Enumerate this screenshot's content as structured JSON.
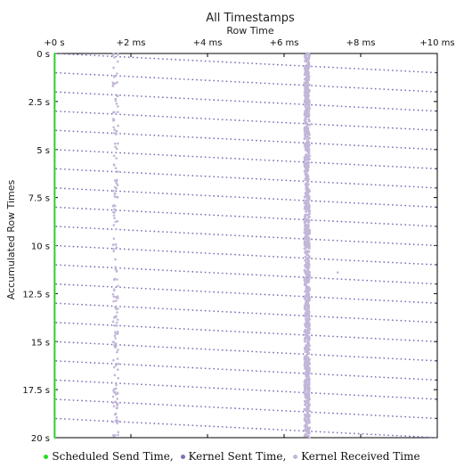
{
  "chart_data": {
    "type": "scatter",
    "title": "All Timestamps",
    "xlabel": "Row Time",
    "ylabel": "Accumulated Row Times",
    "xlim": [
      0,
      10
    ],
    "xunit": "ms",
    "ylim": [
      0,
      20
    ],
    "yunit": "s",
    "x_ticks": [
      "+0 s",
      "+2 ms",
      "+4 ms",
      "+6 ms",
      "+8 ms",
      "+10 ms"
    ],
    "y_ticks": [
      "0 s",
      "2.5 s",
      "5 s",
      "7.5 s",
      "10 s",
      "12.5 s",
      "15 s",
      "17.5 s",
      "20 s"
    ],
    "grid": false,
    "legend_position": "bottom",
    "series": [
      {
        "name": "Scheduled Send Time",
        "color": "#22dd22",
        "x_ms": 0,
        "y_range_s": [
          0,
          20
        ]
      },
      {
        "name": "Kernel Sent Time",
        "color": "#7b72b8",
        "row_start_s": [
          0,
          1,
          2,
          3,
          4,
          5,
          6,
          7,
          8,
          9,
          10,
          11,
          12,
          13,
          14,
          15,
          16,
          17,
          18,
          19
        ],
        "x_range_ms": [
          0,
          10
        ],
        "y_drift_per_row_s": 1
      },
      {
        "name": "Kernel Received Time",
        "color": "#c2b6d9",
        "x_cluster_ms": [
          1.6,
          6.6
        ],
        "y_range_s": [
          0,
          20
        ]
      }
    ]
  },
  "legend": {
    "items": [
      {
        "label": "Scheduled Send Time,",
        "color": "#22dd22"
      },
      {
        "label": "Kernel Sent Time,",
        "color": "#7b72b8"
      },
      {
        "label": "Kernel Received Time",
        "color": "#c2b6d9"
      }
    ]
  }
}
